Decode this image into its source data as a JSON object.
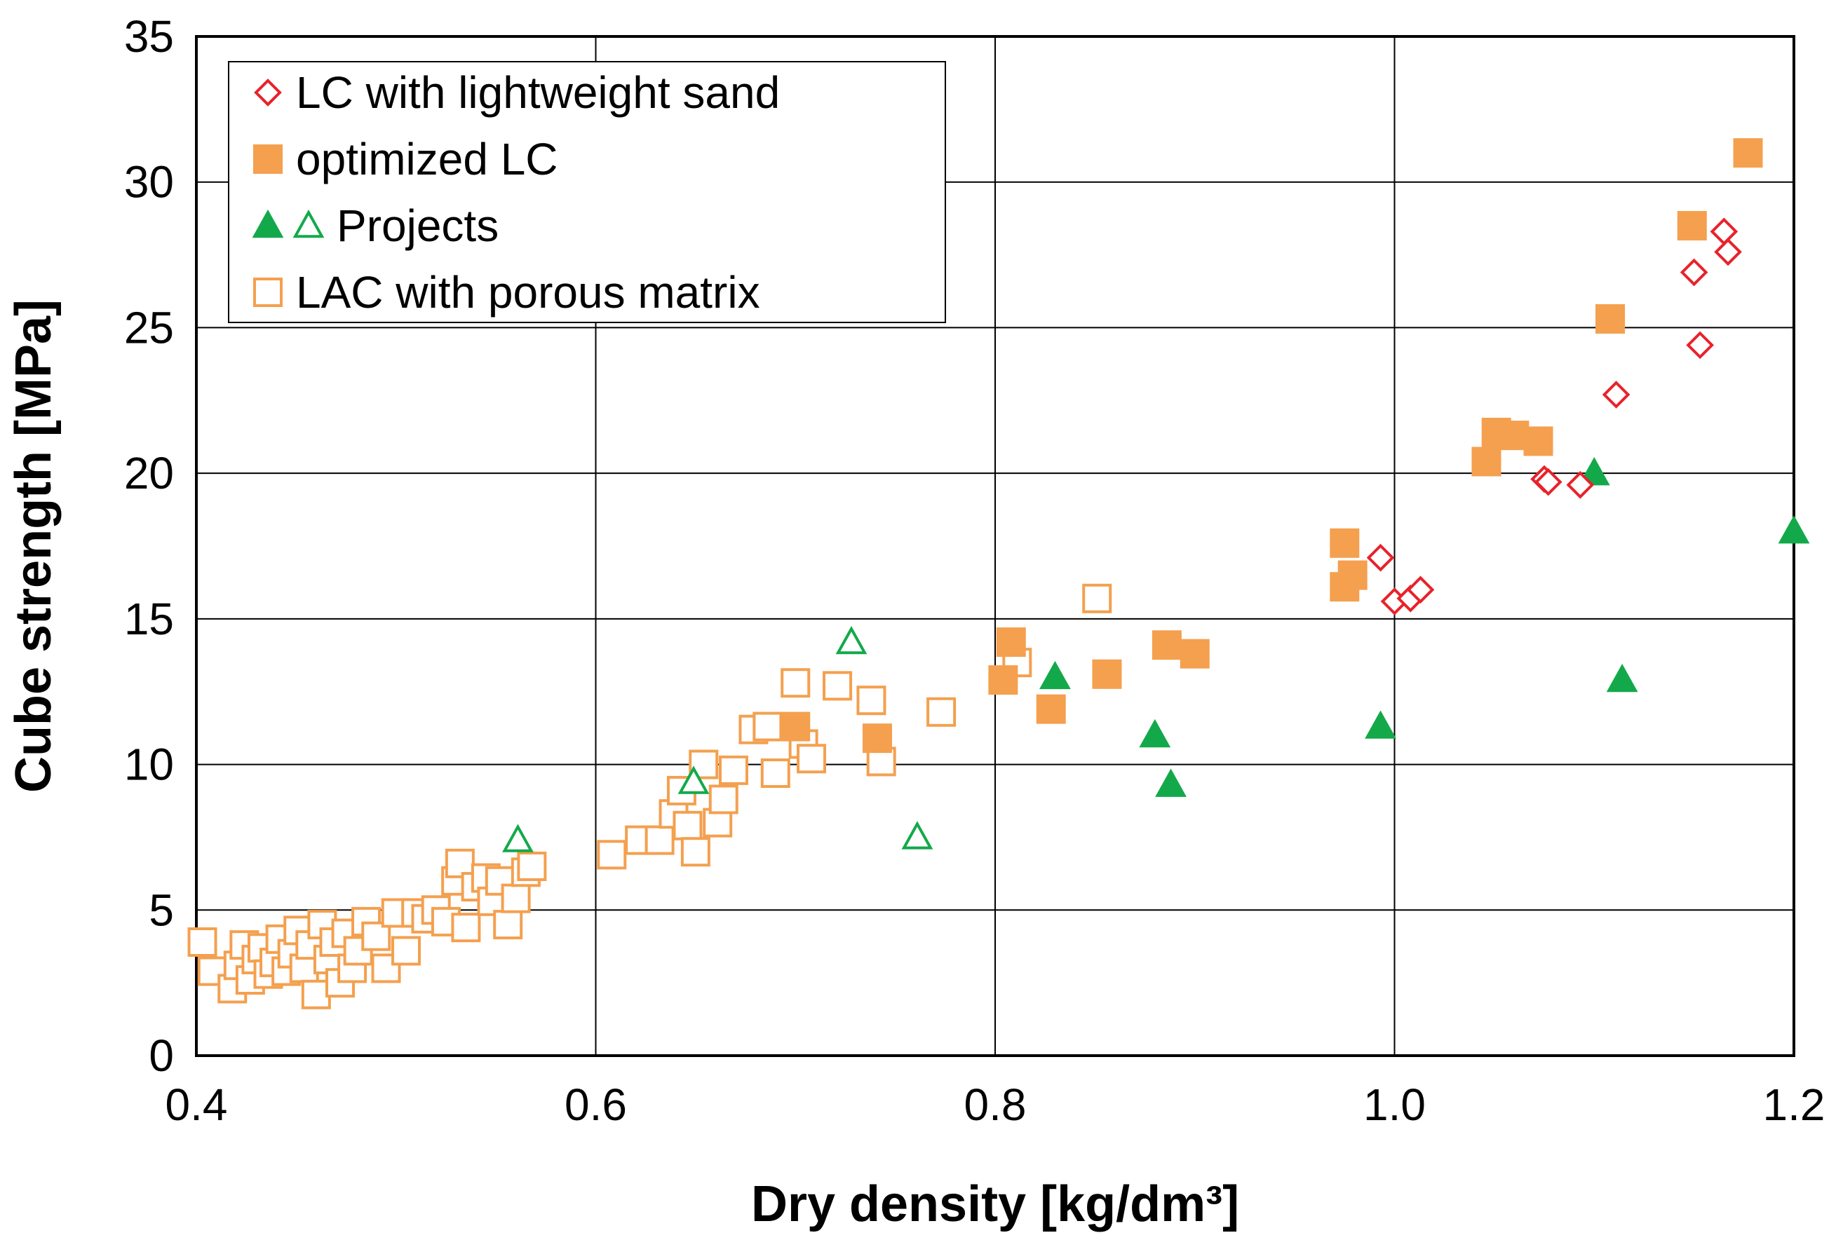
{
  "chart_data": {
    "type": "scatter",
    "title": "",
    "xlabel": "Dry density [kg/dm³]",
    "ylabel": "Cube strength [MPa]",
    "xlim": [
      0.4,
      1.2
    ],
    "ylim": [
      0,
      35
    ],
    "xticks": [
      0.4,
      0.6,
      0.8,
      1.0,
      1.2
    ],
    "xtick_labels": [
      "0.4",
      "0.6",
      "0.8",
      "1.0",
      "1.2"
    ],
    "yticks": [
      0,
      5,
      10,
      15,
      20,
      25,
      30,
      35
    ],
    "ytick_labels": [
      "0",
      "5",
      "10",
      "15",
      "20",
      "25",
      "30",
      "35"
    ],
    "grid": true,
    "legend_position": "top-left",
    "legend": [
      {
        "label": "LC with lightweight sand",
        "markers": [
          "diamond-open-red"
        ]
      },
      {
        "label": "optimized LC",
        "markers": [
          "square-filled-orange"
        ]
      },
      {
        "label": "Projects",
        "markers": [
          "triangle-filled-green",
          "triangle-open-green"
        ]
      },
      {
        "label": "LAC with porous matrix",
        "markers": [
          "square-open-orange"
        ]
      }
    ],
    "series": [
      {
        "name": "LC with lightweight sand",
        "marker": "diamond",
        "filled": false,
        "color": "#e8222a",
        "points": [
          [
            0.993,
            17.1
          ],
          [
            1.0,
            15.6
          ],
          [
            1.008,
            15.7
          ],
          [
            1.013,
            16.0
          ],
          [
            1.075,
            19.8
          ],
          [
            1.077,
            19.7
          ],
          [
            1.093,
            19.6
          ],
          [
            1.111,
            22.7
          ],
          [
            1.15,
            26.9
          ],
          [
            1.153,
            24.4
          ],
          [
            1.165,
            28.3
          ],
          [
            1.167,
            27.6
          ]
        ]
      },
      {
        "name": "optimized LC",
        "marker": "square",
        "filled": true,
        "color": "#f4a04f",
        "points": [
          [
            0.7,
            11.3
          ],
          [
            0.741,
            10.9
          ],
          [
            0.804,
            12.9
          ],
          [
            0.808,
            14.2
          ],
          [
            0.828,
            11.9
          ],
          [
            0.856,
            13.1
          ],
          [
            0.886,
            14.1
          ],
          [
            0.9,
            13.8
          ],
          [
            0.975,
            17.6
          ],
          [
            0.975,
            16.1
          ],
          [
            0.979,
            16.5
          ],
          [
            1.046,
            20.4
          ],
          [
            1.051,
            21.4
          ],
          [
            1.06,
            21.3
          ],
          [
            1.072,
            21.1
          ],
          [
            1.108,
            25.3
          ],
          [
            1.149,
            28.5
          ],
          [
            1.177,
            31.0
          ]
        ]
      },
      {
        "name": "Projects",
        "marker": "triangle",
        "filled": true,
        "color": "#13a94a",
        "points": [
          [
            0.83,
            13.0
          ],
          [
            0.88,
            11.0
          ],
          [
            0.888,
            9.3
          ],
          [
            0.993,
            11.3
          ],
          [
            1.1,
            20.0
          ],
          [
            1.114,
            12.9
          ],
          [
            1.2,
            18.0
          ]
        ]
      },
      {
        "name": "Projects",
        "marker": "triangle",
        "filled": false,
        "color": "#13a94a",
        "points": [
          [
            0.561,
            7.4
          ],
          [
            0.649,
            9.4
          ],
          [
            0.728,
            14.2
          ],
          [
            0.761,
            7.5
          ]
        ]
      },
      {
        "name": "LAC with porous matrix",
        "marker": "square",
        "filled": false,
        "color": "#f4a04f",
        "points": [
          [
            0.403,
            3.9
          ],
          [
            0.408,
            2.9
          ],
          [
            0.418,
            2.3
          ],
          [
            0.421,
            3.1
          ],
          [
            0.424,
            3.8
          ],
          [
            0.427,
            2.6
          ],
          [
            0.43,
            3.3
          ],
          [
            0.433,
            3.7
          ],
          [
            0.436,
            2.8
          ],
          [
            0.439,
            3.2
          ],
          [
            0.442,
            4.0
          ],
          [
            0.445,
            2.9
          ],
          [
            0.448,
            3.5
          ],
          [
            0.451,
            4.3
          ],
          [
            0.454,
            3.0
          ],
          [
            0.457,
            3.8
          ],
          [
            0.46,
            2.1
          ],
          [
            0.463,
            4.5
          ],
          [
            0.466,
            3.3
          ],
          [
            0.469,
            3.9
          ],
          [
            0.472,
            2.5
          ],
          [
            0.475,
            4.2
          ],
          [
            0.478,
            3.0
          ],
          [
            0.481,
            3.6
          ],
          [
            0.485,
            4.6
          ],
          [
            0.49,
            4.1
          ],
          [
            0.495,
            3.0
          ],
          [
            0.5,
            4.9
          ],
          [
            0.505,
            3.6
          ],
          [
            0.51,
            4.9
          ],
          [
            0.515,
            4.7
          ],
          [
            0.52,
            5.0
          ],
          [
            0.525,
            4.6
          ],
          [
            0.53,
            6.0
          ],
          [
            0.532,
            6.6
          ],
          [
            0.535,
            4.4
          ],
          [
            0.54,
            5.8
          ],
          [
            0.545,
            6.1
          ],
          [
            0.548,
            5.3
          ],
          [
            0.552,
            6.0
          ],
          [
            0.556,
            4.5
          ],
          [
            0.56,
            5.4
          ],
          [
            0.565,
            6.3
          ],
          [
            0.568,
            6.5
          ],
          [
            0.608,
            6.9
          ],
          [
            0.622,
            7.4
          ],
          [
            0.632,
            7.4
          ],
          [
            0.639,
            8.3
          ],
          [
            0.643,
            9.1
          ],
          [
            0.646,
            7.9
          ],
          [
            0.65,
            7.0
          ],
          [
            0.654,
            10.0
          ],
          [
            0.661,
            8.0
          ],
          [
            0.664,
            8.8
          ],
          [
            0.669,
            9.8
          ],
          [
            0.679,
            11.2
          ],
          [
            0.686,
            11.3
          ],
          [
            0.69,
            9.7
          ],
          [
            0.7,
            12.8
          ],
          [
            0.704,
            10.7
          ],
          [
            0.708,
            10.2
          ],
          [
            0.721,
            12.7
          ],
          [
            0.738,
            12.2
          ],
          [
            0.743,
            10.1
          ],
          [
            0.773,
            11.8
          ],
          [
            0.811,
            13.5
          ],
          [
            0.851,
            15.7
          ]
        ]
      }
    ]
  }
}
